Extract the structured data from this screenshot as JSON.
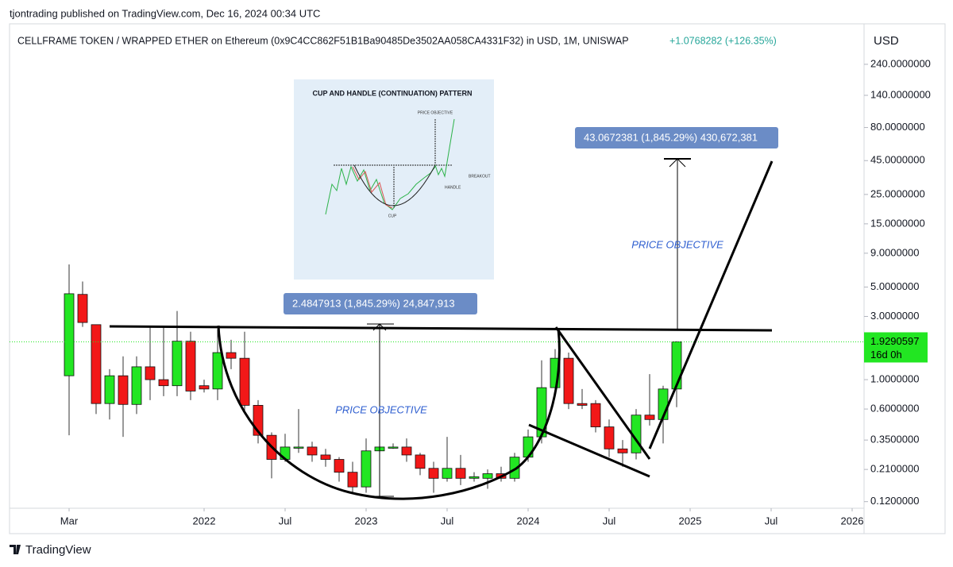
{
  "chart_data": {
    "type": "candlestick",
    "publisher_line": "tjontrading published on TradingView.com, Dec 16, 2024 00:34 UTC",
    "title": "CELLFRAME TOKEN / WRAPPED ETHER on Ethereum (0x9C4CC862F51B1Ba90485De3502AA058CA4331F32) in USD, 1M, UNISWAP",
    "change": "+1.0768282 (+126.35%)",
    "currency": "USD",
    "x": [
      "2021-03",
      "2021-04",
      "2021-05",
      "2021-06",
      "2021-07",
      "2021-08",
      "2021-09",
      "2021-10",
      "2021-11",
      "2021-12",
      "2022-01",
      "2022-02",
      "2022-03",
      "2022-04",
      "2022-05",
      "2022-06",
      "2022-07",
      "2022-08",
      "2022-09",
      "2022-10",
      "2022-11",
      "2022-12",
      "2023-01",
      "2023-02",
      "2023-03",
      "2023-04",
      "2023-05",
      "2023-06",
      "2023-07",
      "2023-08",
      "2023-09",
      "2023-10",
      "2023-11",
      "2023-12",
      "2024-01",
      "2024-02",
      "2024-03",
      "2024-04",
      "2024-05",
      "2024-06",
      "2024-07",
      "2024-08",
      "2024-09",
      "2024-10",
      "2024-11",
      "2024-12"
    ],
    "open": [
      1.07,
      4.4,
      2.6,
      0.66,
      1.07,
      0.65,
      1.25,
      1.0,
      0.9,
      1.95,
      0.9,
      0.85,
      1.6,
      1.45,
      0.64,
      0.38,
      0.25,
      0.31,
      0.31,
      0.27,
      0.25,
      0.2,
      0.155,
      0.29,
      0.31,
      0.31,
      0.27,
      0.214,
      0.18,
      0.214,
      0.18,
      0.18,
      0.195,
      0.18,
      0.26,
      0.37,
      0.87,
      1.45,
      0.66,
      0.66,
      0.44,
      0.3,
      0.28,
      0.54,
      0.5,
      0.85
    ],
    "high": [
      7.4,
      5.5,
      2.6,
      1.2,
      1.5,
      1.5,
      2.5,
      2.5,
      3.3,
      2.3,
      1.0,
      2.4,
      2.0,
      2.3,
      0.7,
      0.4,
      0.39,
      0.6,
      0.34,
      0.3,
      0.26,
      0.24,
      0.36,
      0.34,
      0.33,
      0.36,
      0.28,
      0.24,
      0.37,
      0.27,
      0.2,
      0.21,
      0.22,
      0.28,
      0.42,
      1.4,
      1.7,
      1.6,
      0.85,
      0.7,
      0.5,
      0.35,
      0.6,
      1.1,
      0.9,
      1.95
    ],
    "low": [
      0.38,
      2.5,
      0.55,
      0.5,
      0.37,
      0.55,
      0.7,
      0.75,
      0.75,
      0.7,
      0.8,
      0.7,
      1.2,
      0.55,
      0.33,
      0.18,
      0.24,
      0.28,
      0.24,
      0.22,
      0.17,
      0.14,
      0.14,
      0.2,
      0.3,
      0.24,
      0.19,
      0.14,
      0.17,
      0.16,
      0.17,
      0.15,
      0.17,
      0.17,
      0.24,
      0.33,
      0.8,
      0.6,
      0.6,
      0.4,
      0.26,
      0.22,
      0.25,
      0.45,
      0.33,
      0.62
    ],
    "close": [
      4.45,
      2.7,
      0.66,
      1.07,
      0.65,
      1.25,
      1.0,
      0.9,
      1.95,
      0.82,
      0.85,
      1.6,
      1.45,
      0.64,
      0.38,
      0.25,
      0.31,
      0.31,
      0.27,
      0.25,
      0.2,
      0.155,
      0.29,
      0.31,
      0.31,
      0.27,
      0.214,
      0.18,
      0.214,
      0.18,
      0.185,
      0.195,
      0.18,
      0.26,
      0.37,
      0.87,
      1.45,
      0.66,
      0.64,
      0.44,
      0.3,
      0.28,
      0.54,
      0.5,
      0.85,
      1.929
    ],
    "up_color": "#22e622",
    "down_color": "#f21818",
    "log_scale": true,
    "grid": false,
    "ylim": [
      0.107,
      485
    ],
    "yticks": [
      {
        "value": 240,
        "label": "240.0000000"
      },
      {
        "value": 140,
        "label": "140.0000000"
      },
      {
        "value": 80,
        "label": "80.0000000"
      },
      {
        "value": 45,
        "label": "45.0000000"
      },
      {
        "value": 25,
        "label": "25.0000000"
      },
      {
        "value": 15,
        "label": "15.0000000"
      },
      {
        "value": 9,
        "label": "9.0000000"
      },
      {
        "value": 5,
        "label": "5.0000000"
      },
      {
        "value": 3,
        "label": "3.0000000"
      },
      {
        "value": 1,
        "label": "1.0000000"
      },
      {
        "value": 0.6,
        "label": "0.6000000"
      },
      {
        "value": 0.35,
        "label": "0.3500000"
      },
      {
        "value": 0.21,
        "label": "0.2100000"
      },
      {
        "value": 0.12,
        "label": "0.1200000"
      }
    ],
    "xticks": [
      {
        "value": "2021-03",
        "label": "Mar"
      },
      {
        "value": "2022-01",
        "label": "2022"
      },
      {
        "value": "2022-07",
        "label": "Jul"
      },
      {
        "value": "2023-01",
        "label": "2023"
      },
      {
        "value": "2023-07",
        "label": "Jul"
      },
      {
        "value": "2024-01",
        "label": "2024"
      },
      {
        "value": "2024-07",
        "label": "Jul"
      },
      {
        "value": "2025-01",
        "label": "2025"
      },
      {
        "value": "2025-07",
        "label": "Jul"
      },
      {
        "value": "2026-01",
        "label": "2026"
      }
    ],
    "last_price": 1.9290597,
    "countdown": "16d 0h",
    "annotations": {
      "measure_left": "2.4847913 (1,845.29%) 24,847,913",
      "measure_right": "43.0672381 (1,845.29%) 430,672,381",
      "objective_left": "PRICE OBJECTIVE",
      "objective_right": "PRICE OBJECTIVE"
    },
    "inset": {
      "title": "CUP AND HANDLE (CONTINUATION) PATTERN",
      "price_objective": "PRICE OBJECTIVE",
      "breakout": "BREAKOUT",
      "handle": "HANDLE",
      "cup": "CUP"
    },
    "footer": "TradingView"
  }
}
